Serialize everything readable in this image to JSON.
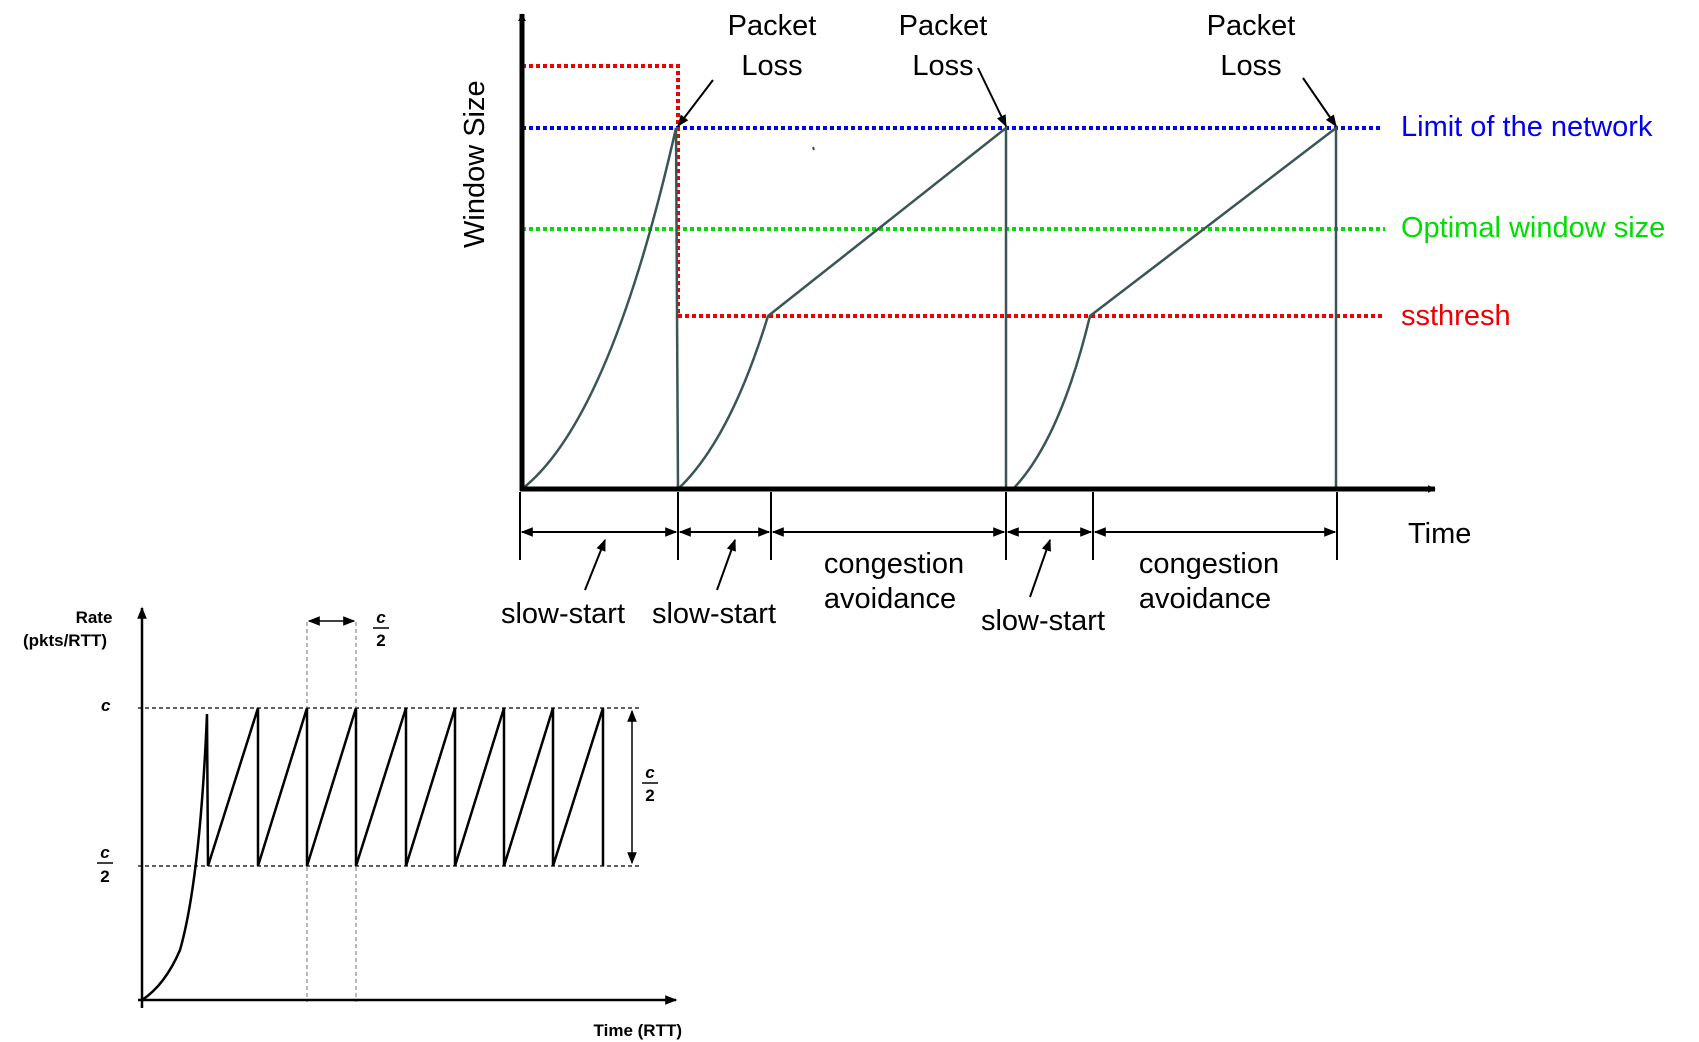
{
  "top": {
    "y_axis_label": "Window Size",
    "x_axis_label": "Time",
    "packet_loss_1": [
      "Packet",
      "Loss"
    ],
    "packet_loss_2": [
      "Packet",
      "Loss"
    ],
    "packet_loss_3": [
      "Packet",
      "Loss"
    ],
    "lines": {
      "limit": {
        "label": "Limit of the network",
        "color": "#0000ee"
      },
      "optimal": {
        "label": "Optimal window size",
        "color": "#00dd00"
      },
      "ssthresh": {
        "label": "ssthresh",
        "color": "#ee0000"
      }
    },
    "phases": {
      "ss1": "slow-start",
      "ss2": "slow-start",
      "ca1": [
        "congestion",
        "avoidance"
      ],
      "ss3": "slow-start",
      "ca2": [
        "congestion",
        "avoidance"
      ]
    }
  },
  "bottom": {
    "y_axis_label": [
      "Rate",
      "(pkts/RTT)"
    ],
    "x_axis_label": "Time (RTT)",
    "c_label": "c",
    "half_num": "c",
    "half_den": "2"
  }
}
